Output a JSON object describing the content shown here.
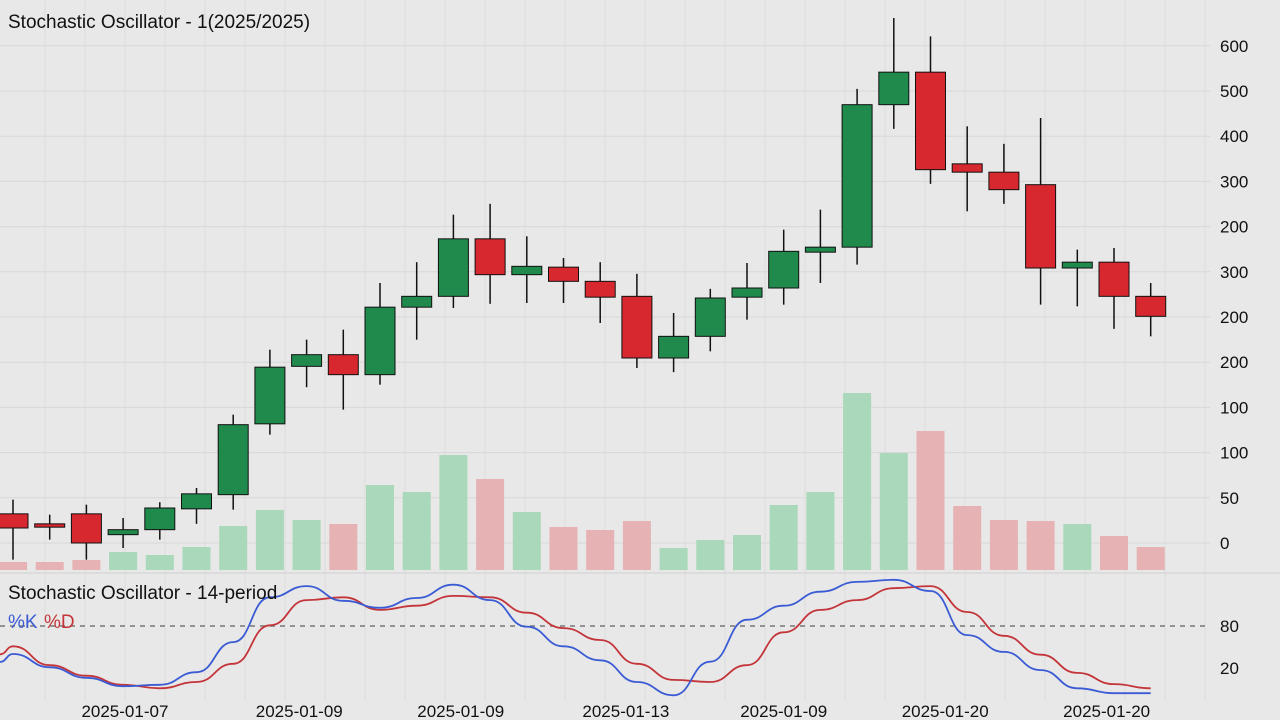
{
  "chart_data": {
    "type": "candlestick",
    "title": "Stochastic Oscillator - 1(2025/2025)",
    "price_ticks": [
      "0",
      "50",
      "100",
      "100",
      "200",
      "200",
      "300",
      "200",
      "300",
      "400",
      "500",
      "600"
    ],
    "price_range": [
      -20,
      640
    ],
    "candles": [
      {
        "o": 35,
        "h": 52,
        "l": -20,
        "c": 18
      },
      {
        "o": 23,
        "h": 34,
        "l": 4,
        "c": 19
      },
      {
        "o": 35,
        "h": 46,
        "l": -20,
        "c": 0
      },
      {
        "o": 10,
        "h": 30,
        "l": -6,
        "c": 16
      },
      {
        "o": 16,
        "h": 49,
        "l": 4,
        "c": 42
      },
      {
        "o": 41,
        "h": 66,
        "l": 23,
        "c": 59
      },
      {
        "o": 58,
        "h": 154,
        "l": 40,
        "c": 142
      },
      {
        "o": 143,
        "h": 232,
        "l": 130,
        "c": 211
      },
      {
        "o": 212,
        "h": 244,
        "l": 187,
        "c": 226
      },
      {
        "o": 226,
        "h": 256,
        "l": 160,
        "c": 202
      },
      {
        "o": 202,
        "h": 312,
        "l": 190,
        "c": 283
      },
      {
        "o": 283,
        "h": 337,
        "l": 244,
        "c": 296
      },
      {
        "o": 296,
        "h": 394,
        "l": 282,
        "c": 365
      },
      {
        "o": 365,
        "h": 407,
        "l": 287,
        "c": 322
      },
      {
        "o": 322,
        "h": 368,
        "l": 288,
        "c": 332
      },
      {
        "o": 331,
        "h": 342,
        "l": 288,
        "c": 314
      },
      {
        "o": 314,
        "h": 337,
        "l": 264,
        "c": 295
      },
      {
        "o": 296,
        "h": 323,
        "l": 210,
        "c": 222
      },
      {
        "o": 222,
        "h": 276,
        "l": 205,
        "c": 248
      },
      {
        "o": 248,
        "h": 305,
        "l": 230,
        "c": 294
      },
      {
        "o": 295,
        "h": 336,
        "l": 268,
        "c": 306
      },
      {
        "o": 306,
        "h": 376,
        "l": 286,
        "c": 350
      },
      {
        "o": 349,
        "h": 400,
        "l": 312,
        "c": 355
      },
      {
        "o": 355,
        "h": 545,
        "l": 334,
        "c": 526
      },
      {
        "o": 526,
        "h": 630,
        "l": 497,
        "c": 565
      },
      {
        "o": 565,
        "h": 608,
        "l": 431,
        "c": 448
      },
      {
        "o": 455,
        "h": 500,
        "l": 398,
        "c": 445
      },
      {
        "o": 445,
        "h": 479,
        "l": 407,
        "c": 424
      },
      {
        "o": 430,
        "h": 510,
        "l": 286,
        "c": 330
      },
      {
        "o": 330,
        "h": 352,
        "l": 284,
        "c": 337
      },
      {
        "o": 337,
        "h": 354,
        "l": 257,
        "c": 296
      },
      {
        "o": 296,
        "h": 312,
        "l": 248,
        "c": 272
      }
    ],
    "volume": [
      8,
      8,
      10,
      18,
      15,
      23,
      44,
      60,
      50,
      46,
      85,
      78,
      115,
      91,
      58,
      43,
      40,
      49,
      22,
      30,
      35,
      65,
      78,
      177,
      117,
      139,
      64,
      50,
      49,
      46,
      34,
      23
    ],
    "date_ticks": [
      {
        "label": "2025-01-07",
        "index": 3.05
      },
      {
        "label": "2025-01-09",
        "index": 7.8
      },
      {
        "label": "2025-01-09",
        "index": 12.2
      },
      {
        "label": "2025-01-13",
        "index": 16.7
      },
      {
        "label": "2025-01-09",
        "index": 21.0
      },
      {
        "label": "2025-01-20",
        "index": 25.4
      },
      {
        "label": "2025-01-20",
        "index": 29.8
      }
    ],
    "oscillator": {
      "title": "Stochastic Oscillator - 14-period",
      "k_label": "%K",
      "d_label": "%D",
      "ticks": [
        "20",
        "80"
      ],
      "reference_level": 80,
      "k": [
        40,
        21,
        6,
        -6,
        -4,
        14,
        57,
        121,
        137,
        116,
        106,
        120,
        139,
        117,
        79,
        51,
        31,
        0,
        -19,
        29,
        89,
        109,
        129,
        143,
        146,
        130,
        67,
        43,
        17,
        -9,
        -16,
        -16
      ],
      "d": [
        51,
        24,
        9,
        -4,
        -9,
        0,
        26,
        81,
        117,
        121,
        103,
        109,
        123,
        121,
        99,
        77,
        60,
        26,
        3,
        0,
        24,
        71,
        103,
        117,
        134,
        137,
        100,
        66,
        39,
        13,
        -3,
        -9
      ]
    },
    "colors": {
      "up": "#1f8a4c",
      "down": "#d6282e",
      "vol_up": "#a9d9ba",
      "vol_down": "#e6b2b4",
      "k": "#3a5bd4",
      "d": "#c4353a"
    },
    "grid": true
  }
}
